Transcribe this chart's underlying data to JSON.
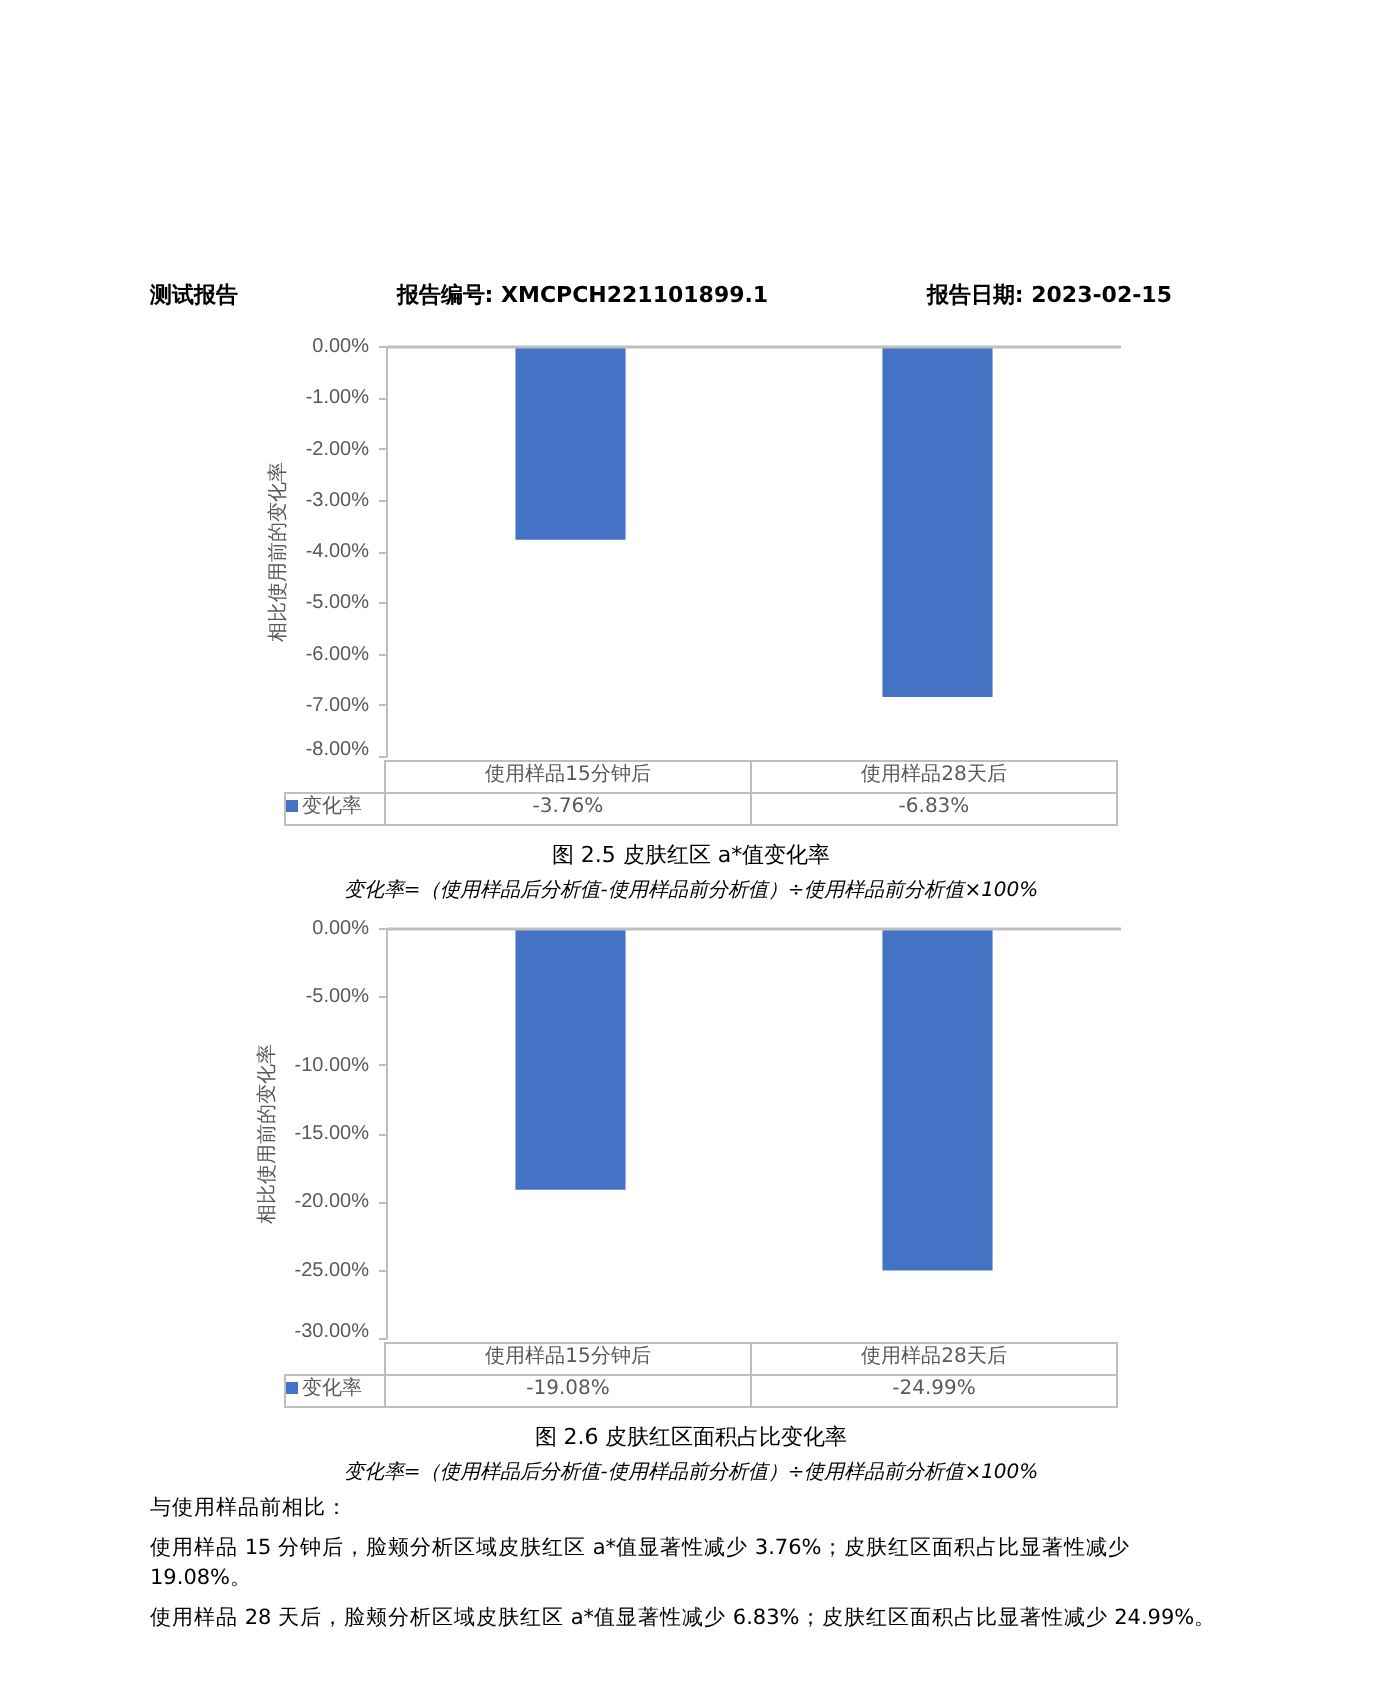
{
  "chart_data": [
    {
      "type": "bar",
      "title": "图 2.5 皮肤红区 a*值变化率",
      "ylabel": "相比使用前的变化率",
      "categories": [
        "使用样品15分钟后",
        "使用样品28天后"
      ],
      "series": [
        {
          "name": "变化率",
          "color": "#4472c4",
          "values": [
            -3.76,
            -6.83
          ],
          "value_labels": [
            "-3.76%",
            "-6.83%"
          ]
        }
      ],
      "ylim": [
        -8,
        0
      ],
      "yticks": [
        {
          "value": 0,
          "label": "0.00%"
        },
        {
          "value": -1,
          "label": "-1.00%"
        },
        {
          "value": -2,
          "label": "-2.00%"
        },
        {
          "value": -3,
          "label": "-3.00%"
        },
        {
          "value": -4,
          "label": "-4.00%"
        },
        {
          "value": -5,
          "label": "-5.00%"
        },
        {
          "value": -6,
          "label": "-6.00%"
        },
        {
          "value": -7,
          "label": "-7.00%"
        },
        {
          "value": -8,
          "label": "-8.00%"
        }
      ],
      "legend": "bottom",
      "tick_labels": "y",
      "annotations": [
        "测试报告",
        "报告编号: XMCPCH221101899.1",
        "报告日期: 2023-02-15",
        "变化率=（使用样品后分析值-使用样品前分析值）÷使用样品前分析值×100%"
      ]
    },
    {
      "type": "bar",
      "title": "图 2.6 皮肤红区面积占比变化率",
      "ylabel": "相比使用前的变化率",
      "categories": [
        "使用样品15分钟后",
        "使用样品28天后"
      ],
      "series": [
        {
          "name": "变化率",
          "color": "#4472c4",
          "values": [
            -19.08,
            -24.99
          ],
          "value_labels": [
            "-19.08%",
            "-24.99%"
          ]
        }
      ],
      "ylim": [
        -30,
        0
      ],
      "yticks": [
        {
          "value": 0,
          "label": "0.00%"
        },
        {
          "value": -5,
          "label": "-5.00%"
        },
        {
          "value": -10,
          "label": "-10.00%"
        },
        {
          "value": -15,
          "label": "-15.00%"
        },
        {
          "value": -20,
          "label": "-20.00%"
        },
        {
          "value": -25,
          "label": "-25.00%"
        },
        {
          "value": -30,
          "label": "-30.00%"
        }
      ],
      "legend": "bottom",
      "tick_labels": "y",
      "annotations": [
        "变化率=（使用样品后分析值-使用样品前分析值）÷使用样品前分析值×100%",
        "与使用样品前相比：",
        "使用样品 15 分钟后，脸颊分析区域皮肤红区 a*值显著性减少 3.76%；皮肤红区面积占比显著性减少 19.08%。",
        "使用样品 28 天后，脸颊分析区域皮肤红区 a*值显著性减少 6.83%；皮肤红区面积占比显著性减少 24.99%。"
      ]
    }
  ]
}
